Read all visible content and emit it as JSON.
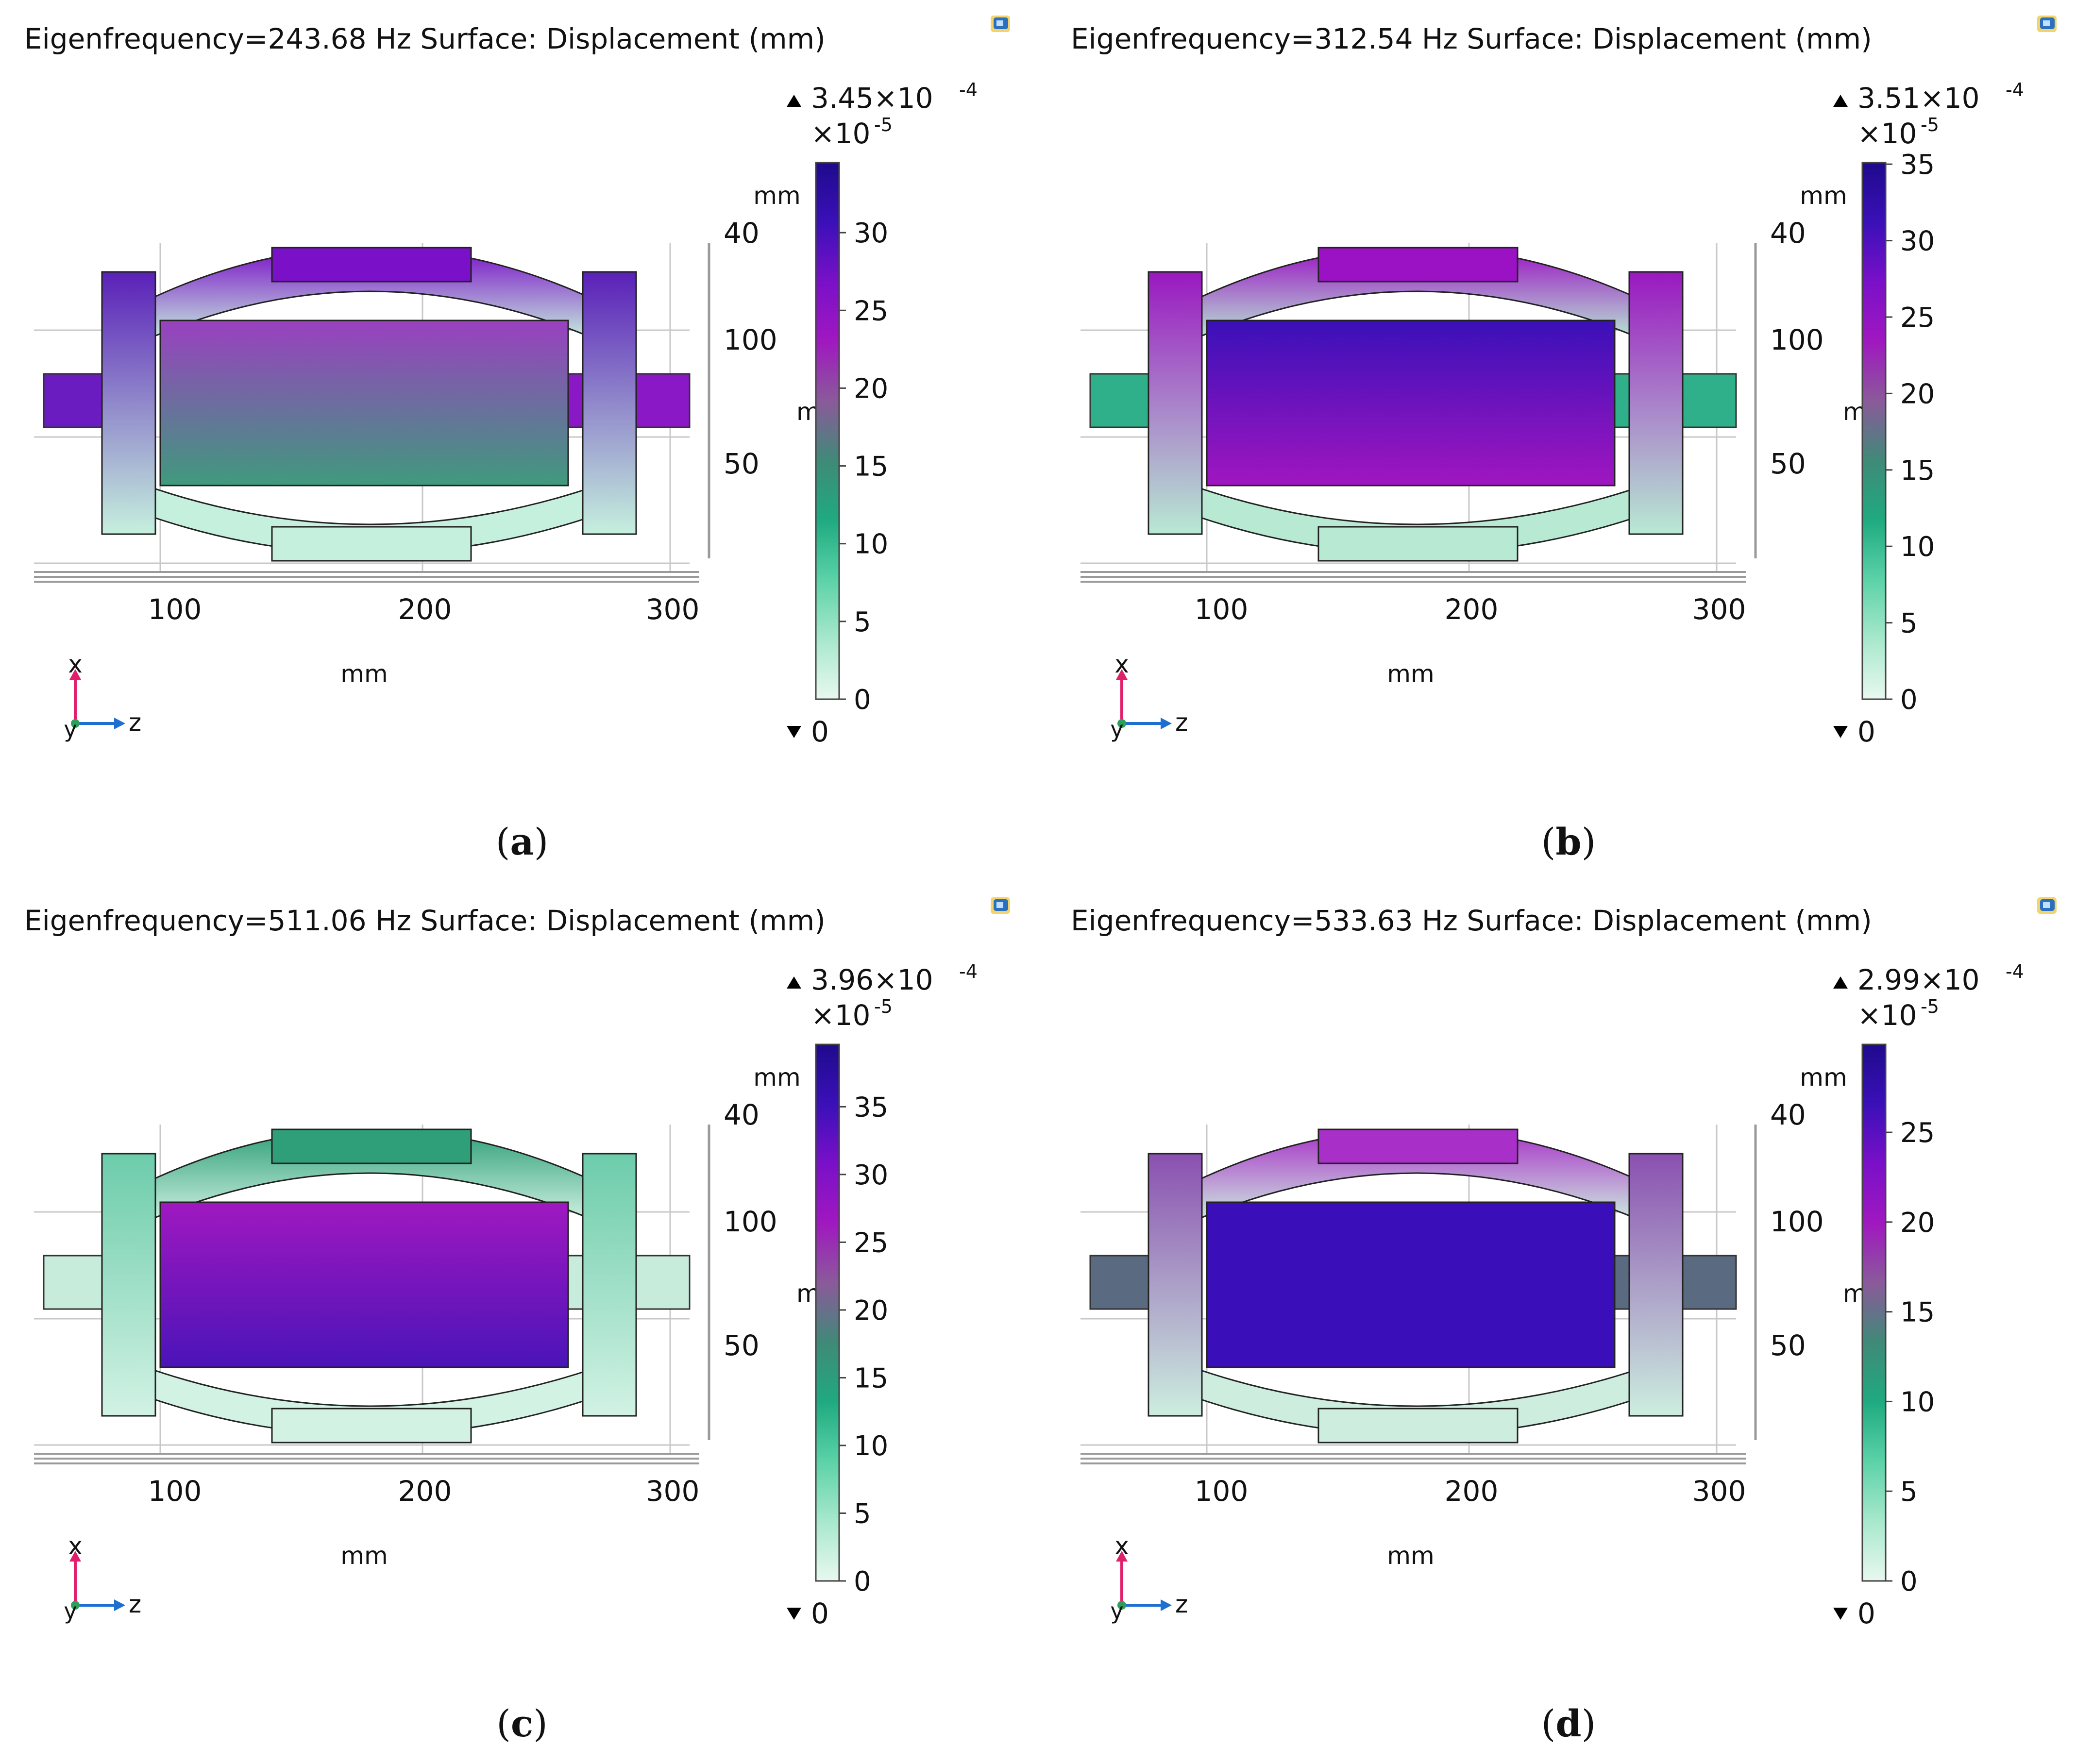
{
  "panels": [
    {
      "title": "Eigenfrequency=243.68 Hz Surface: Displacement (mm)",
      "caption_letter": "a",
      "colorbar": {
        "max_label": "3.45×10",
        "max_exp": "-4",
        "scale_label": "×10",
        "scale_exp": "-5",
        "min_label": "0",
        "ticks": [
          "30",
          "25",
          "20",
          "15",
          "10",
          "5",
          "0"
        ],
        "top_value": 34.5
      },
      "axis_units": {
        "x_unit": "mm",
        "y_unit": "mm",
        "side_unit": "mm",
        "side_unit_cut": "m"
      },
      "x_ticks": [
        "100",
        "200",
        "300"
      ],
      "side_ticks": [
        "40",
        "100",
        "50"
      ],
      "triad": {
        "up": "x",
        "right": "z",
        "out": "y"
      },
      "mode_colors": {
        "ring_top": "#7a10c8",
        "ring_bottom": "#c6f0de",
        "mass_top": "#9a40c0",
        "mass_bottom": "#3f9a7d",
        "shaft_left": "#6a1cc0",
        "shaft_right": "#8a18c6",
        "legs": "#5a20b8"
      }
    },
    {
      "title": "Eigenfrequency=312.54 Hz Surface: Displacement (mm)",
      "caption_letter": "b",
      "colorbar": {
        "max_label": "3.51×10",
        "max_exp": "-4",
        "scale_label": "×10",
        "scale_exp": "-5",
        "min_label": "0",
        "ticks": [
          "35",
          "30",
          "25",
          "20",
          "15",
          "10",
          "5",
          "0"
        ],
        "top_value": 35.1
      },
      "axis_units": {
        "x_unit": "mm",
        "y_unit": "mm",
        "side_unit": "mm",
        "side_unit_cut": "m"
      },
      "x_ticks": [
        "100",
        "200",
        "300"
      ],
      "side_ticks": [
        "40",
        "100",
        "50"
      ],
      "triad": {
        "up": "x",
        "right": "z",
        "out": "y"
      },
      "mode_colors": {
        "ring_top": "#9a12c4",
        "ring_bottom": "#b8ead3",
        "mass_top": "#3a10b8",
        "mass_bottom": "#a016c0",
        "shaft_left": "#2fb08a",
        "shaft_right": "#2fb08a",
        "legs": "#9a18c0"
      }
    },
    {
      "title": "Eigenfrequency=511.06 Hz Surface: Displacement (mm)",
      "caption_letter": "c",
      "colorbar": {
        "max_label": "3.96×10",
        "max_exp": "-4",
        "scale_label": "×10",
        "scale_exp": "-5",
        "min_label": "0",
        "ticks": [
          "35",
          "30",
          "25",
          "20",
          "15",
          "10",
          "5",
          "0"
        ],
        "top_value": 39.6
      },
      "axis_units": {
        "x_unit": "mm",
        "y_unit": "mm",
        "side_unit": "mm",
        "side_unit_cut": "m"
      },
      "x_ticks": [
        "100",
        "200",
        "300"
      ],
      "side_ticks": [
        "40",
        "100",
        "50"
      ],
      "triad": {
        "up": "x",
        "right": "z",
        "out": "y"
      },
      "mode_colors": {
        "ring_top": "#2e9f78",
        "ring_bottom": "#d2f2e4",
        "mass_top": "#a018c0",
        "mass_bottom": "#4a14b8",
        "shaft_left": "#c8ecdc",
        "shaft_right": "#c8ecdc",
        "legs": "#6cccab"
      }
    },
    {
      "title": "Eigenfrequency=533.63 Hz Surface: Displacement (mm)",
      "caption_letter": "d",
      "colorbar": {
        "max_label": "2.99×10",
        "max_exp": "-4",
        "scale_label": "×10",
        "scale_exp": "-5",
        "min_label": "0",
        "ticks": [
          "25",
          "20",
          "15",
          "10",
          "5",
          "0"
        ],
        "top_value": 29.9
      },
      "axis_units": {
        "x_unit": "mm",
        "y_unit": "mm",
        "side_unit": "mm",
        "side_unit_cut": "m"
      },
      "x_ticks": [
        "100",
        "200",
        "300"
      ],
      "side_ticks": [
        "40",
        "100",
        "50"
      ],
      "triad": {
        "up": "x",
        "right": "z",
        "out": "y"
      },
      "mode_colors": {
        "ring_top": "#a830c8",
        "ring_bottom": "#cdeedf",
        "mass_top": "#3a0eb8",
        "mass_bottom": "#3a0eb8",
        "shaft_left": "#5a6a80",
        "shaft_right": "#5a6a80",
        "legs": "#8a50b0"
      }
    }
  ],
  "colormap": [
    "#1f0a8c",
    "#3a10b8",
    "#7a10c8",
    "#a018c0",
    "#8a5a9a",
    "#3f8a78",
    "#1faa80",
    "#5cd2a8",
    "#a8e8cc",
    "#e8f8f0"
  ]
}
